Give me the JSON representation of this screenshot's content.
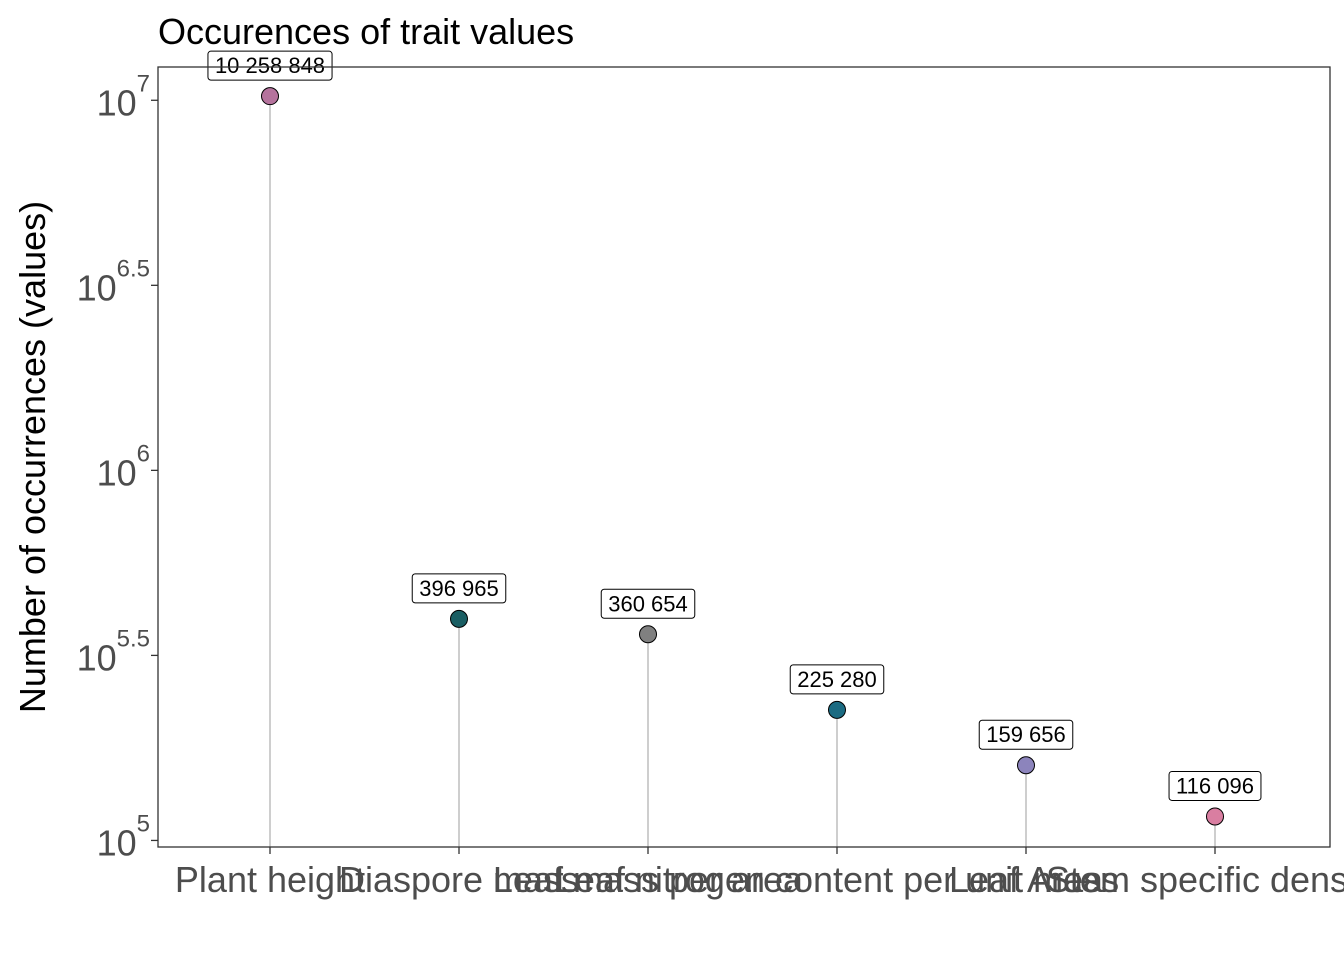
{
  "chart_data": {
    "type": "lollipop",
    "title": "Occurences of trait values",
    "xlabel": "",
    "ylabel": "Number of occurrences (values)",
    "y_scale": "log10",
    "ylim": [
      96000,
      12300000
    ],
    "y_ticks": [
      {
        "value": 100000,
        "base": "10",
        "exp": "5"
      },
      {
        "value": 316228,
        "base": "10",
        "exp": "5.5"
      },
      {
        "value": 1000000,
        "base": "10",
        "exp": "6"
      },
      {
        "value": 3162278,
        "base": "10",
        "exp": "6.5"
      },
      {
        "value": 10000000,
        "base": "10",
        "exp": "7"
      }
    ],
    "categories": [
      "Plant height",
      "Diaspore mass",
      "Leaf mass per area",
      "Leaf nitrogen content per unit mass",
      "Leaf Area",
      "Stem specific density"
    ],
    "points": [
      {
        "label": "Plant height",
        "value": 10258848,
        "value_label": "10 258 848",
        "color": "#b5739d"
      },
      {
        "label": "Diaspore mass",
        "value": 396965,
        "value_label": "396 965",
        "color": "#1a5e63"
      },
      {
        "label": "Leaf mass per area",
        "value": 360654,
        "value_label": "360 654",
        "color": "#808080"
      },
      {
        "label": "Leaf Area",
        "value": 225280,
        "value_label": "225 280",
        "color": "#1b6b82"
      },
      {
        "label": "Leaf nitrogen content per unit mass",
        "value": 159656,
        "value_label": "159 656",
        "color": "#8c84bc"
      },
      {
        "label": "Stem specific density",
        "value": 116096,
        "value_label": "116 096",
        "color": "#d97ea1"
      }
    ],
    "grid": false,
    "legend": "none",
    "stem_color": "#bdbdbd",
    "panel_border_color": "#333333"
  }
}
